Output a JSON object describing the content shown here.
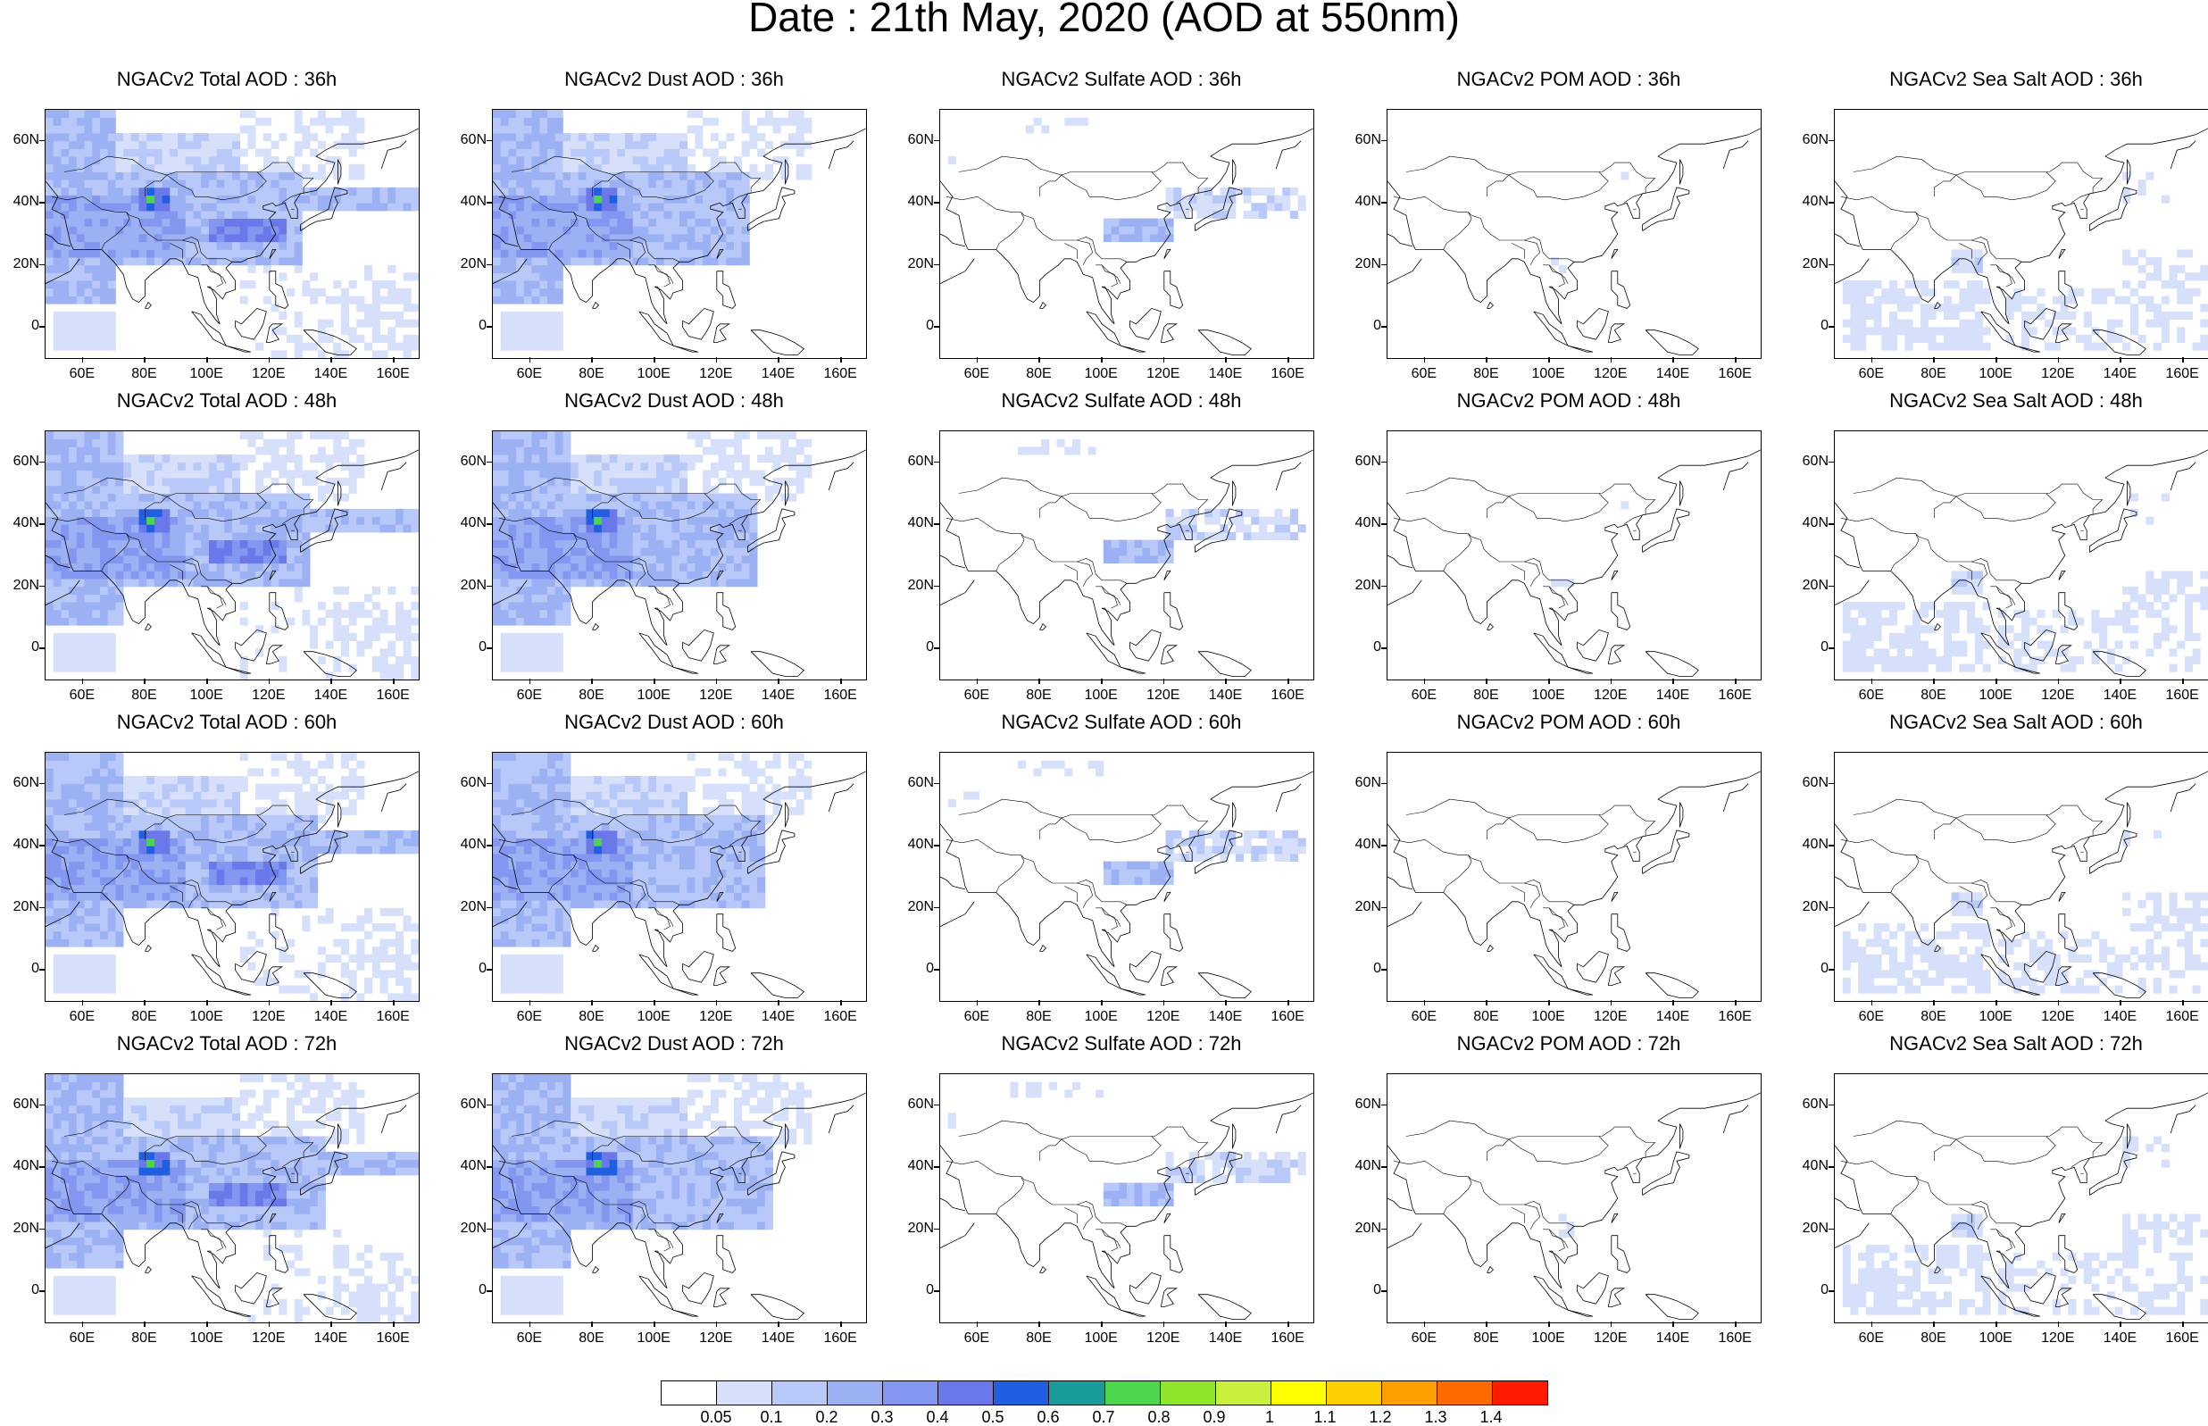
{
  "title": "Date : 21th May, 2020 (AOD at 550nm)",
  "map": {
    "lon_range": [
      48,
      168
    ],
    "lat_range": [
      -10,
      70
    ],
    "x_ticks": [
      "60E",
      "80E",
      "100E",
      "120E",
      "140E",
      "160E"
    ],
    "x_tick_values": [
      60,
      80,
      100,
      120,
      140,
      160
    ],
    "y_ticks": [
      "60N",
      "40N",
      "20N",
      "0"
    ],
    "y_tick_values": [
      60,
      40,
      20,
      0
    ]
  },
  "colorbar": {
    "labels": [
      "0.05",
      "0.1",
      "0.2",
      "0.3",
      "0.4",
      "0.5",
      "0.6",
      "0.7",
      "0.8",
      "0.9",
      "1",
      "1.1",
      "1.2",
      "1.3",
      "1.4"
    ],
    "colors": [
      "#ffffff",
      "#d6e0fb",
      "#b8c8f8",
      "#9cb0f4",
      "#8396f0",
      "#6a78ea",
      "#1f5fe0",
      "#1a9a9a",
      "#4cd64c",
      "#8ee52a",
      "#c8f03c",
      "#ffff00",
      "#ffd000",
      "#ffa000",
      "#ff6a00",
      "#ff1a00"
    ]
  },
  "species": [
    {
      "key": "total",
      "style": "total"
    },
    {
      "key": "dust",
      "style": "dust"
    },
    {
      "key": "sulfate",
      "style": "sulfate"
    },
    {
      "key": "pom",
      "style": "pom"
    },
    {
      "key": "seasalt",
      "style": "seasalt"
    }
  ],
  "hours": [
    "36h",
    "48h",
    "60h",
    "72h"
  ],
  "panels": [
    [
      "NGACv2 Total AOD : 36h",
      "NGACv2 Dust AOD : 36h",
      "NGACv2 Sulfate AOD : 36h",
      "NGACv2 POM AOD : 36h",
      "NGACv2 Sea Salt AOD : 36h"
    ],
    [
      "NGACv2 Total AOD : 48h",
      "NGACv2 Dust AOD : 48h",
      "NGACv2 Sulfate AOD : 48h",
      "NGACv2 POM AOD : 48h",
      "NGACv2 Sea Salt AOD : 48h"
    ],
    [
      "NGACv2 Total AOD : 60h",
      "NGACv2 Dust AOD : 60h",
      "NGACv2 Sulfate AOD : 60h",
      "NGACv2 POM AOD : 60h",
      "NGACv2 Sea Salt AOD : 60h"
    ],
    [
      "NGACv2 Total AOD : 72h",
      "NGACv2 Dust AOD : 72h",
      "NGACv2 Sulfate AOD : 72h",
      "NGACv2 POM AOD : 72h",
      "NGACv2 Sea Salt  AOD : 72h"
    ]
  ]
}
